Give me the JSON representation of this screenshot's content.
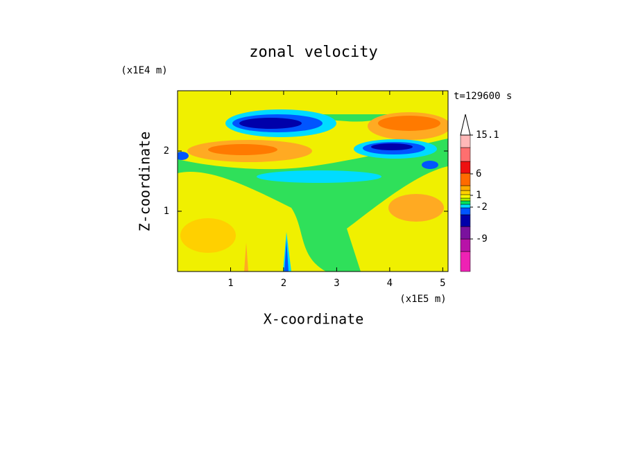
{
  "chart_data": {
    "type": "contour",
    "title": "zonal velocity",
    "x_label": "X-coordinate",
    "y_label": "Z-coordinate",
    "x_unit": "(x1E5 m)",
    "y_unit": "(x1E4 m)",
    "annotation": "t=129600 s",
    "xlim": [
      0,
      5.1
    ],
    "xticks": [
      1,
      2,
      3,
      4,
      5
    ],
    "ylim": [
      0,
      3
    ],
    "yticks": [
      1,
      2
    ],
    "colorbar_colors": [
      "#ee22b4",
      "#b812a8",
      "#7a129e",
      "#0000aa",
      "#0055ff",
      "#00dcff",
      "#00e060",
      "#a8f000",
      "#ffff00",
      "#ffd000",
      "#ffaa00",
      "#ff6a00",
      "#ee1010",
      "#ff6f6f",
      "#ffb8b8"
    ],
    "colorbar_ticks": [
      -9,
      -2,
      1,
      6,
      15.1
    ]
  }
}
